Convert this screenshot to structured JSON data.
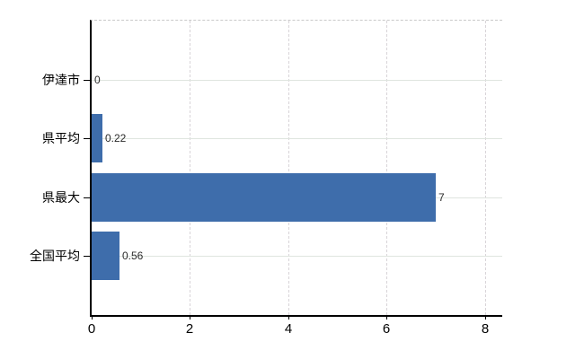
{
  "chart_data": {
    "type": "bar",
    "orientation": "horizontal",
    "title": "",
    "xlabel": "",
    "ylabel": "",
    "categories": [
      "伊達市",
      "県平均",
      "県最大",
      "全国平均"
    ],
    "values": [
      0,
      0.22,
      7,
      0.56
    ],
    "value_labels": [
      "0",
      "0.22",
      "7",
      "0.56"
    ],
    "xticks": [
      0,
      2,
      4,
      6,
      8
    ],
    "xtick_labels": [
      "0",
      "2",
      "4",
      "6",
      "8"
    ],
    "xlim": [
      0,
      8.35
    ],
    "grid": true,
    "legend": false,
    "colors": {
      "bar": "#3e6dab",
      "axis": "#000000",
      "gridline_horizontal": "#dfe5df",
      "gridline_vertical": "#d8d4d8",
      "plot_top_border": "#c9c9c9",
      "value_label_text": "#2b2b2b",
      "tick_label_text": "#000000",
      "background": "#ffffff"
    }
  }
}
